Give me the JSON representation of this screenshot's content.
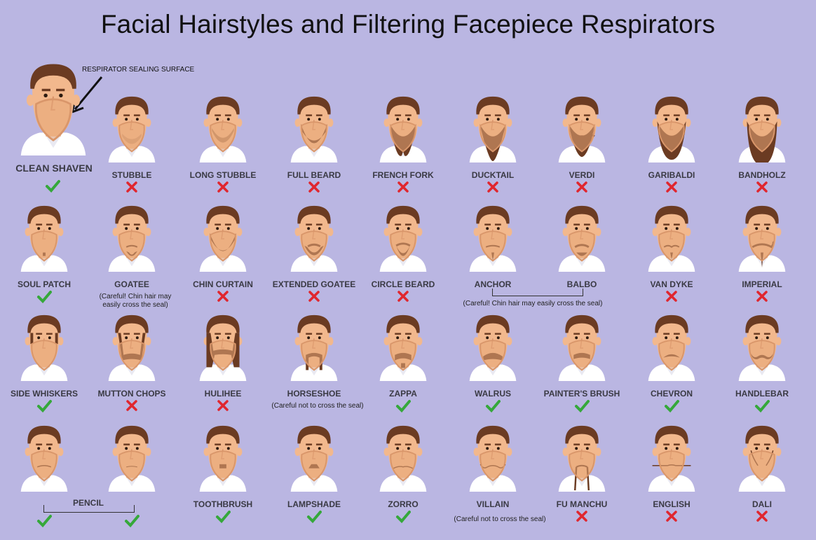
{
  "title": "Facial Hairstyles and Filtering Facepiece Respirators",
  "callout": "RESPIRATOR SEALING SURFACE",
  "colors": {
    "background": "#bab6e2",
    "skin": "#f2b88d",
    "hair": "#6b3b22",
    "seal": "#e8a878",
    "check": "#35a83a",
    "cross": "#e0262e",
    "shirt": "#ffffff"
  },
  "styles": [
    {
      "label": "CLEAN SHAVEN",
      "ok": true,
      "facial": "none"
    },
    {
      "label": "STUBBLE",
      "ok": false,
      "facial": "stubble"
    },
    {
      "label": "LONG STUBBLE",
      "ok": false,
      "facial": "longstubble"
    },
    {
      "label": "FULL BEARD",
      "ok": false,
      "facial": "fullbeard"
    },
    {
      "label": "FRENCH FORK",
      "ok": false,
      "facial": "frenchfork"
    },
    {
      "label": "DUCKTAIL",
      "ok": false,
      "facial": "ducktail"
    },
    {
      "label": "VERDI",
      "ok": false,
      "facial": "verdi"
    },
    {
      "label": "GARIBALDI",
      "ok": false,
      "facial": "garibaldi"
    },
    {
      "label": "BANDHOLZ",
      "ok": false,
      "facial": "bandholz"
    },
    {
      "label": "SOUL PATCH",
      "ok": true,
      "facial": "soulpatch"
    },
    {
      "label": "GOATEE",
      "ok": null,
      "facial": "goatee"
    },
    {
      "label": "CHIN CURTAIN",
      "ok": false,
      "facial": "chincurtain"
    },
    {
      "label": "EXTENDED GOATEE",
      "ok": false,
      "facial": "extgoatee"
    },
    {
      "label": "CIRCLE BEARD",
      "ok": false,
      "facial": "circle"
    },
    {
      "label": "ANCHOR",
      "ok": null,
      "facial": "anchor"
    },
    {
      "label": "BALBO",
      "ok": null,
      "facial": "balbo"
    },
    {
      "label": "VAN DYKE",
      "ok": false,
      "facial": "vandyke"
    },
    {
      "label": "IMPERIAL",
      "ok": false,
      "facial": "imperial"
    },
    {
      "label": "SIDE WHISKERS",
      "ok": true,
      "facial": "sidewhiskers"
    },
    {
      "label": "MUTTON CHOPS",
      "ok": false,
      "facial": "mutton"
    },
    {
      "label": "HULIHEE",
      "ok": false,
      "facial": "hulihee"
    },
    {
      "label": "HORSESHOE",
      "ok": null,
      "facial": "horseshoe"
    },
    {
      "label": "ZAPPA",
      "ok": true,
      "facial": "zappa"
    },
    {
      "label": "WALRUS",
      "ok": true,
      "facial": "walrus"
    },
    {
      "label": "PAINTER'S BRUSH",
      "ok": true,
      "facial": "painter"
    },
    {
      "label": "CHEVRON",
      "ok": true,
      "facial": "chevron"
    },
    {
      "label": "HANDLEBAR",
      "ok": true,
      "facial": "handlebar"
    },
    {
      "label": "",
      "ok": true,
      "facial": "pencil"
    },
    {
      "label": "",
      "ok": true,
      "facial": "pencilthin"
    },
    {
      "label": "TOOTHBRUSH",
      "ok": true,
      "facial": "toothbrush"
    },
    {
      "label": "LAMPSHADE",
      "ok": true,
      "facial": "lampshade"
    },
    {
      "label": "ZORRO",
      "ok": true,
      "facial": "zorro"
    },
    {
      "label": "VILLAIN",
      "ok": null,
      "facial": "villain"
    },
    {
      "label": "FU MANCHU",
      "ok": false,
      "facial": "fumanchu"
    },
    {
      "label": "ENGLISH",
      "ok": false,
      "facial": "english"
    },
    {
      "label": "DALI",
      "ok": false,
      "facial": "dali"
    }
  ],
  "notes": {
    "goatee": "(Careful! Chin hair may easily cross the seal)",
    "anchor_balbo": "(Careful! Chin hair may easily cross the seal)",
    "horseshoe": "(Careful not to cross the seal)",
    "villain": "(Careful not to cross the seal)",
    "pencil": "PENCIL"
  }
}
